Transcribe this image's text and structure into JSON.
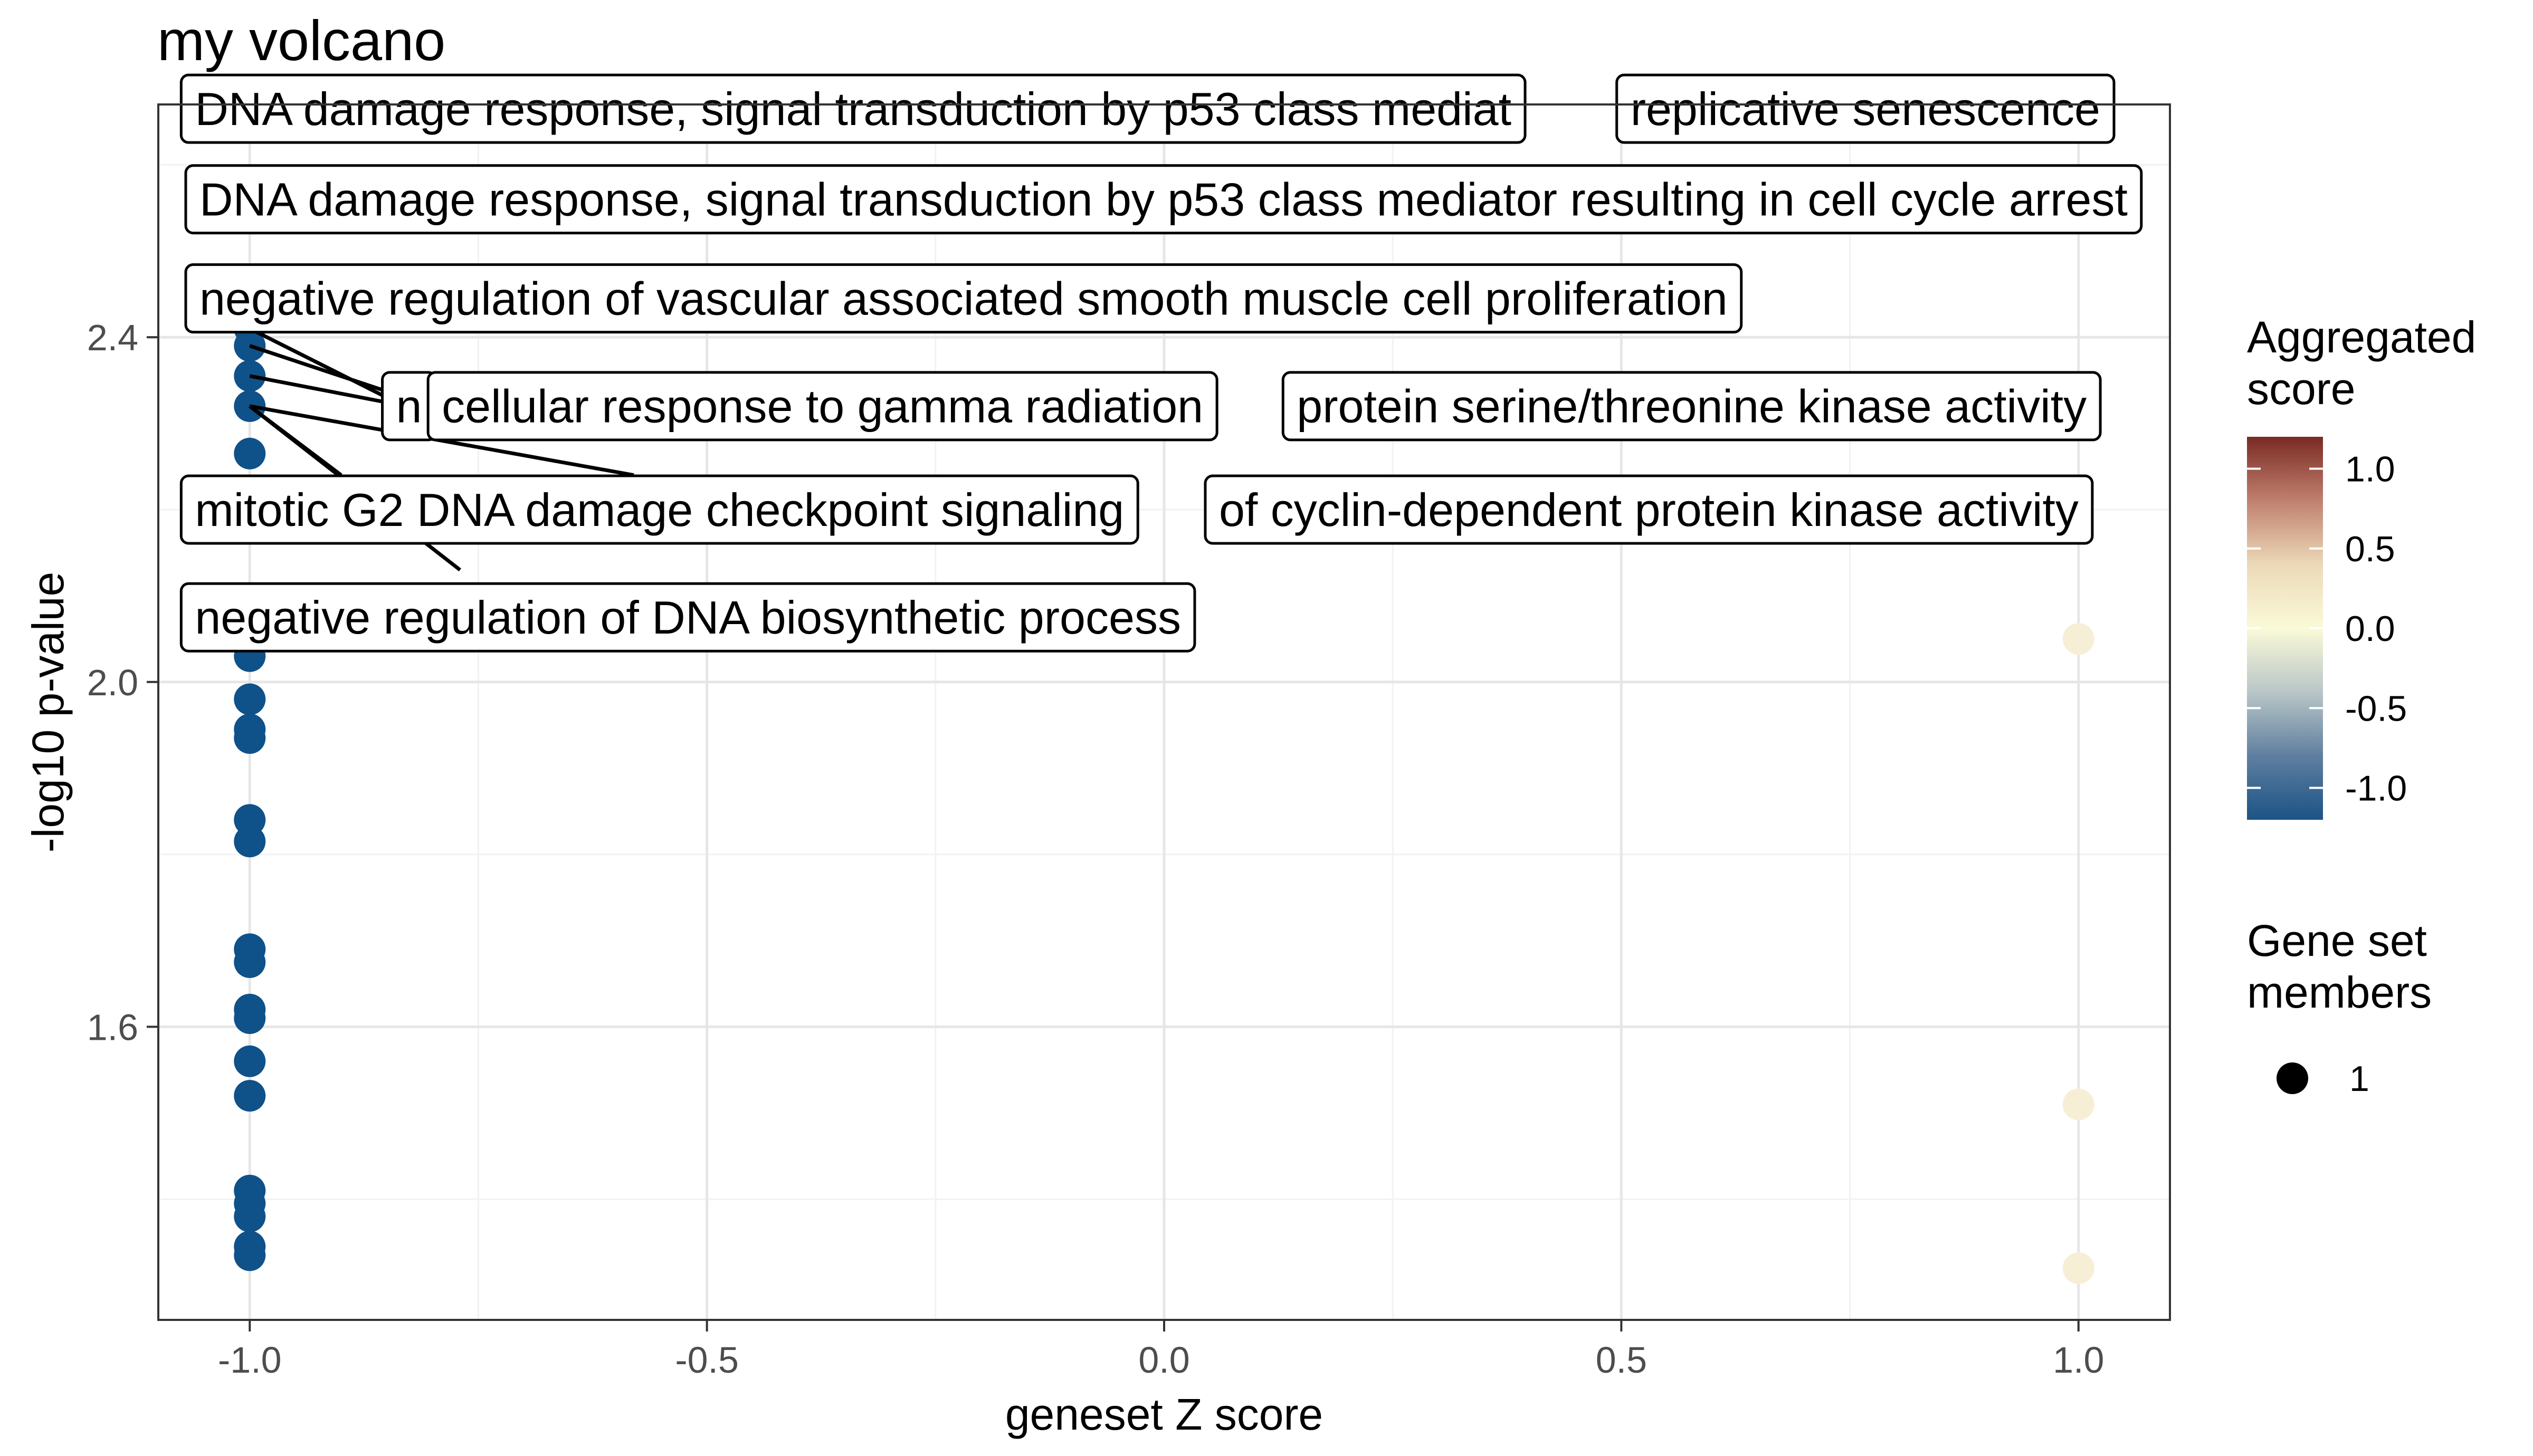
{
  "chart_data": {
    "type": "scatter",
    "title": "my volcano",
    "xlabel": "geneset Z score",
    "ylabel": "-log10 p-value",
    "xlim": [
      -1.1,
      1.1
    ],
    "ylim": [
      1.26,
      2.67
    ],
    "x_ticks": [
      -1.0,
      -0.5,
      0.0,
      0.5,
      1.0
    ],
    "x_tick_labels": [
      "-1.0",
      "-0.5",
      "0.0",
      "0.5",
      "1.0"
    ],
    "y_ticks": [
      1.6,
      2.0,
      2.4
    ],
    "y_tick_labels": [
      "1.6",
      "2.0",
      "2.4"
    ],
    "grid": true,
    "points": [
      {
        "x": -1,
        "y": 2.65,
        "score": -1
      },
      {
        "x": -1,
        "y": 2.41,
        "score": -1
      },
      {
        "x": -1,
        "y": 2.39,
        "score": -1
      },
      {
        "x": -1,
        "y": 2.355,
        "score": -1
      },
      {
        "x": -1,
        "y": 2.32,
        "score": -1
      },
      {
        "x": -1,
        "y": 2.265,
        "score": -1
      },
      {
        "x": -1,
        "y": 2.03,
        "score": -1
      },
      {
        "x": -1,
        "y": 1.98,
        "score": -1
      },
      {
        "x": -1,
        "y": 1.945,
        "score": -1
      },
      {
        "x": -1,
        "y": 1.935,
        "score": -1
      },
      {
        "x": -1,
        "y": 1.84,
        "score": -1
      },
      {
        "x": -1,
        "y": 1.815,
        "score": -1
      },
      {
        "x": -1,
        "y": 1.69,
        "score": -1
      },
      {
        "x": -1,
        "y": 1.675,
        "score": -1
      },
      {
        "x": -1,
        "y": 1.62,
        "score": -1
      },
      {
        "x": -1,
        "y": 1.61,
        "score": -1
      },
      {
        "x": -1,
        "y": 1.56,
        "score": -1
      },
      {
        "x": -1,
        "y": 1.52,
        "score": -1
      },
      {
        "x": -1,
        "y": 1.41,
        "score": -1
      },
      {
        "x": -1,
        "y": 1.395,
        "score": -1
      },
      {
        "x": -1,
        "y": 1.38,
        "score": -1
      },
      {
        "x": -1,
        "y": 1.345,
        "score": -1
      },
      {
        "x": -1,
        "y": 1.335,
        "score": -1
      },
      {
        "x": 1,
        "y": 2.05,
        "score": 0
      },
      {
        "x": 1,
        "y": 1.51,
        "score": 0
      },
      {
        "x": 1,
        "y": 1.32,
        "score": 0
      }
    ],
    "labels": [
      {
        "text": "DNA damage response, signal transduction by p53 class mediator resulting in cell cycle arrest",
        "box_x": -1.07,
        "box_y": 2.56,
        "point": [
          -1,
          2.65
        ],
        "line_end": [
          -0.78,
          2.665
        ]
      },
      {
        "text": "DNA damage response, signal transduction by p53 class mediat",
        "box_x": -1.075,
        "box_y": 2.665,
        "point": null,
        "line_end": null
      },
      {
        "text": "replicative senescence",
        "box_x": 0.495,
        "box_y": 2.665,
        "point": null,
        "line_end": null
      },
      {
        "text": "negative regulation of vascular associated smooth muscle cell proliferation",
        "box_x": -1.07,
        "box_y": 2.445,
        "point": [
          -1,
          2.41
        ],
        "line_end": [
          -0.85,
          2.33
        ]
      },
      {
        "text": "n",
        "box_x": -0.855,
        "box_y": 2.32,
        "point": [
          -1,
          2.39
        ],
        "line_end": [
          -0.83,
          2.33
        ]
      },
      {
        "text": "protein serine/threonine kinase activity",
        "box_x": 0.13,
        "box_y": 2.32,
        "point": [
          -1,
          2.355
        ],
        "line_end": [
          -0.78,
          2.31
        ]
      },
      {
        "text": "cellular response to gamma radiation",
        "box_x": -0.805,
        "box_y": 2.32,
        "point": null,
        "line_end": null
      },
      {
        "text": "of cyclin-dependent protein kinase activity",
        "box_x": 0.045,
        "box_y": 2.2,
        "point": [
          -1,
          2.32
        ],
        "line_end": [
          -0.58,
          2.24
        ]
      },
      {
        "text": "mitotic G2 DNA damage checkpoint signaling",
        "box_x": -1.075,
        "box_y": 2.2,
        "point": [
          -1,
          2.32
        ],
        "line_end": [
          -0.9,
          2.24
        ]
      },
      {
        "text": "negative regulation of DNA biosynthetic process",
        "box_x": -1.075,
        "box_y": 2.075,
        "point": [
          -1,
          2.32
        ],
        "line_end": [
          -0.77,
          2.13
        ]
      }
    ],
    "colorbar": {
      "title": [
        "Aggregated",
        "score"
      ],
      "ticks": [
        1.0,
        0.5,
        0.0,
        -0.5,
        -1.0
      ],
      "tick_labels": [
        "1.0",
        "0.5",
        "0.0",
        "-0.5",
        "-1.0"
      ],
      "range": [
        -1.2,
        1.2
      ],
      "colors_top_to_bottom": [
        "#7a2a23",
        "#c0806f",
        "#ecd9b8",
        "#fafad8",
        "#b9c6c7",
        "#5f7fa0",
        "#1c5386"
      ]
    },
    "size_legend": {
      "title": [
        "Gene set",
        "members"
      ],
      "entries": [
        "1"
      ]
    },
    "colors": {
      "negative": "#0f5189",
      "neutral": "#f7efd5",
      "panel_border": "#333333",
      "grid_major": "#e6e6e6",
      "grid_minor": "#f2f2f2"
    }
  }
}
